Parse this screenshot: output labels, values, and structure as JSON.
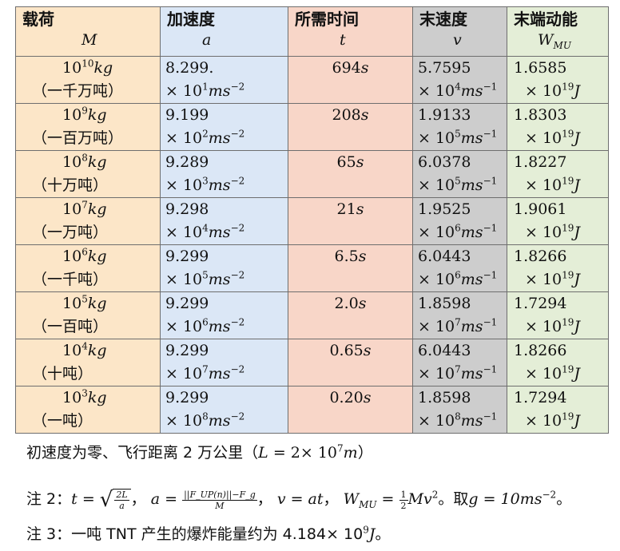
{
  "headers": [
    {
      "title": "载荷",
      "symbol": "M"
    },
    {
      "title": "加速度",
      "symbol": "a"
    },
    {
      "title": "所需时间",
      "symbol": "t"
    },
    {
      "title": "末速度",
      "symbol": "v"
    },
    {
      "title": "末端动能",
      "symbol": "W",
      "symbol_sub": "MU"
    }
  ],
  "rows": [
    {
      "mass_exp": "10",
      "mass_cn": "（一千万吨）",
      "acc_mant": "8.299.",
      "acc_exp": "1",
      "time": "694",
      "vel_mant": "5.7595",
      "vel_exp": "4",
      "ke_mant": "1.6585",
      "ke_exp": "19"
    },
    {
      "mass_exp": "9",
      "mass_cn": "（一百万吨）",
      "acc_mant": "9.199",
      "acc_exp": "2",
      "time": "208",
      "vel_mant": "1.9133",
      "vel_exp": "5",
      "ke_mant": "1.8303",
      "ke_exp": "19"
    },
    {
      "mass_exp": "8",
      "mass_cn": "（十万吨）",
      "acc_mant": "9.289",
      "acc_exp": "3",
      "time": "65",
      "vel_mant": "6.0378",
      "vel_exp": "5",
      "ke_mant": "1.8227",
      "ke_exp": "19"
    },
    {
      "mass_exp": "7",
      "mass_cn": "（一万吨）",
      "acc_mant": "9.298",
      "acc_exp": "4",
      "time": "21",
      "vel_mant": "1.9525",
      "vel_exp": "6",
      "ke_mant": "1.9061",
      "ke_exp": "19"
    },
    {
      "mass_exp": "6",
      "mass_cn": "（一千吨）",
      "acc_mant": "9.299",
      "acc_exp": "5",
      "time": "6.5",
      "vel_mant": "6.0443",
      "vel_exp": "6",
      "ke_mant": "1.8266",
      "ke_exp": "19"
    },
    {
      "mass_exp": "5",
      "mass_cn": "（一百吨）",
      "acc_mant": "9.299",
      "acc_exp": "6",
      "time": "2.0",
      "vel_mant": "1.8598",
      "vel_exp": "7",
      "ke_mant": "1.7294",
      "ke_exp": "19"
    },
    {
      "mass_exp": "4",
      "mass_cn": "（十吨）",
      "acc_mant": "9.299",
      "acc_exp": "7",
      "time": "0.65",
      "vel_mant": "6.0443",
      "vel_exp": "7",
      "ke_mant": "1.8266",
      "ke_exp": "19"
    },
    {
      "mass_exp": "3",
      "mass_cn": "（一吨）",
      "acc_mant": "9.299",
      "acc_exp": "8",
      "time": "0.20",
      "vel_mant": "1.8598",
      "vel_exp": "8",
      "ke_mant": "1.7294",
      "ke_exp": "19"
    }
  ],
  "units": {
    "mass": "kg",
    "acc": "ms",
    "acc_pow": "−2",
    "time": "s",
    "vel": "ms",
    "vel_pow": "−1",
    "energy": "J",
    "times": "× 10",
    "base": "10"
  },
  "caption": {
    "text": "初速度为零、飞行距离 2 万公里（",
    "eq": "L",
    "eq_val": " = 2× 10",
    "eq_exp": "7",
    "eq_unit": "m",
    "close": "）"
  },
  "note2": {
    "label": "注 2：",
    "t_lhs": "t = ",
    "t_num": "2L",
    "t_den": "a",
    "sep1": "，",
    "a_lhs": "a = ",
    "a_num": "||F_UP(n)||−F_g",
    "a_den": "M",
    "sep2": "，",
    "v_eq": "v = at",
    "sep3": "，",
    "w_lhs": "W",
    "w_sub": "MU",
    "w_eq": " = ",
    "w_num": "1",
    "w_den": "2",
    "w_rhs": "Mv",
    "w_pow": "2",
    "tail": "。取",
    "g_eq": "g = 10ms",
    "g_pow": "−2",
    "end": "。"
  },
  "note3": {
    "text": "注 3：一吨 TNT 产生的爆炸能量约为 4.184× 10",
    "exp": "9",
    "unit": "J",
    "end": "。"
  }
}
